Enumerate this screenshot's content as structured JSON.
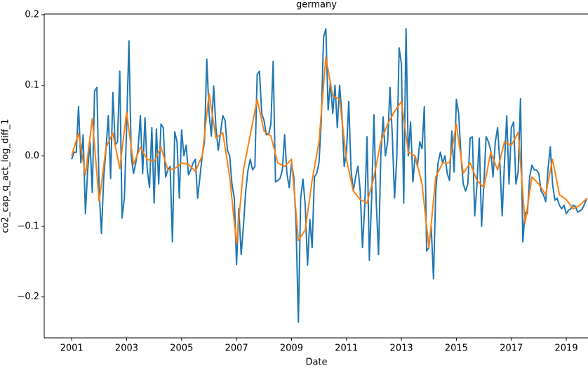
{
  "chart_data": {
    "type": "line",
    "title": "germany",
    "x_label": "Date",
    "y_label": "co2_cap_q_act_log_diff_1",
    "xlim": [
      2000,
      2019.79
    ],
    "xticks": [
      2001,
      2003,
      2005,
      2007,
      2009,
      2011,
      2013,
      2015,
      2017,
      2019
    ],
    "ylim": [
      -0.258,
      0.201
    ],
    "yticks": [
      {
        "value": -0.2,
        "label": "−0.2"
      },
      {
        "value": -0.1,
        "label": "−0.1"
      },
      {
        "value": 0,
        "label": "0.0"
      },
      0.1,
      0.2
    ],
    "grid": false,
    "series": [
      {
        "color": "#1f77b4",
        "x": [
          2001,
          2001.083,
          2001.167,
          2001.25,
          2001.333,
          2001.417,
          2001.5,
          2001.583,
          2001.667,
          2001.75,
          2001.833,
          2001.917,
          2002,
          2002.083,
          2002.167,
          2002.25,
          2002.333,
          2002.417,
          2002.5,
          2002.583,
          2002.667,
          2002.75,
          2002.833,
          2002.917,
          2003,
          2003.083,
          2003.167,
          2003.25,
          2003.333,
          2003.417,
          2003.5,
          2003.583,
          2003.667,
          2003.75,
          2003.833,
          2003.917,
          2004,
          2004.083,
          2004.167,
          2004.25,
          2004.333,
          2004.417,
          2004.5,
          2004.583,
          2004.667,
          2004.75,
          2004.833,
          2004.917,
          2005,
          2005.083,
          2005.167,
          2005.25,
          2005.333,
          2005.417,
          2005.5,
          2005.583,
          2005.667,
          2005.75,
          2005.833,
          2005.917,
          2006,
          2006.083,
          2006.167,
          2006.25,
          2006.333,
          2006.417,
          2006.5,
          2006.583,
          2006.667,
          2006.75,
          2006.833,
          2006.917,
          2007,
          2007.083,
          2007.167,
          2007.25,
          2007.333,
          2007.417,
          2007.5,
          2007.583,
          2007.667,
          2007.75,
          2007.833,
          2007.917,
          2008,
          2008.083,
          2008.167,
          2008.25,
          2008.333,
          2008.417,
          2008.5,
          2008.583,
          2008.667,
          2008.75,
          2008.833,
          2008.917,
          2009,
          2009.083,
          2009.167,
          2009.25,
          2009.333,
          2009.417,
          2009.5,
          2009.583,
          2009.667,
          2009.75,
          2009.833,
          2009.917,
          2010,
          2010.083,
          2010.167,
          2010.25,
          2010.333,
          2010.417,
          2010.5,
          2010.583,
          2010.667,
          2010.75,
          2010.833,
          2010.917,
          2011,
          2011.083,
          2011.167,
          2011.25,
          2011.333,
          2011.417,
          2011.5,
          2011.583,
          2011.667,
          2011.75,
          2011.833,
          2011.917,
          2012,
          2012.083,
          2012.167,
          2012.25,
          2012.333,
          2012.417,
          2012.5,
          2012.583,
          2012.667,
          2012.75,
          2012.833,
          2012.917,
          2013,
          2013.083,
          2013.167,
          2013.25,
          2013.333,
          2013.417,
          2013.5,
          2013.583,
          2013.667,
          2013.75,
          2013.833,
          2013.917,
          2014,
          2014.083,
          2014.167,
          2014.25,
          2014.333,
          2014.417,
          2014.5,
          2014.583,
          2014.667,
          2014.75,
          2014.833,
          2014.917,
          2015,
          2015.083,
          2015.167,
          2015.25,
          2015.333,
          2015.417,
          2015.5,
          2015.583,
          2015.667,
          2015.75,
          2015.833,
          2015.917,
          2016,
          2016.083,
          2016.167,
          2016.25,
          2016.333,
          2016.417,
          2016.5,
          2016.583,
          2016.667,
          2016.75,
          2016.833,
          2016.917,
          2017,
          2017.083,
          2017.167,
          2017.25,
          2017.333,
          2017.417,
          2017.5,
          2017.583,
          2017.667,
          2017.75,
          2017.833,
          2017.917,
          2018,
          2018.083,
          2018.167,
          2018.25,
          2018.333,
          2018.417,
          2018.5,
          2018.583,
          2018.667,
          2018.75,
          2018.833,
          2018.917,
          2019,
          2019.083,
          2019.167,
          2019.25,
          2019.333,
          2019.417,
          2019.5,
          2019.583,
          2019.667,
          2019.75
        ],
        "values": [
          -0.005,
          0.005,
          0.005,
          0.07,
          -0.01,
          0.03,
          -0.082,
          -0.02,
          0.02,
          -0.052,
          0.092,
          0.097,
          -0.05,
          -0.11,
          -0.03,
          0.01,
          0.057,
          -0.032,
          0.09,
          0.015,
          0.02,
          0.12,
          -0.088,
          -0.06,
          0.04,
          0.163,
          0.0,
          -0.025,
          -0.01,
          0.01,
          0.057,
          -0.025,
          0.054,
          -0.02,
          -0.045,
          0.04,
          -0.067,
          0.038,
          -0.04,
          0.045,
          0.04,
          -0.03,
          -0.02,
          -0.015,
          -0.122,
          0.034,
          0.02,
          -0.06,
          0.037,
          0.0,
          0.015,
          -0.027,
          -0.02,
          -0.01,
          -0.005,
          -0.06,
          -0.03,
          0.0,
          0.02,
          0.137,
          0.06,
          0.028,
          0.099,
          0.04,
          0.008,
          0.033,
          0.057,
          0.05,
          0.008,
          0.0,
          -0.04,
          -0.06,
          -0.154,
          -0.075,
          -0.14,
          -0.1,
          -0.05,
          -0.02,
          -0.005,
          -0.02,
          -0.015,
          0.115,
          0.12,
          0.06,
          0.05,
          0.03,
          0.03,
          0.045,
          0.134,
          -0.037,
          -0.035,
          -0.032,
          -0.02,
          0.03,
          -0.025,
          -0.045,
          -0.01,
          -0.03,
          -0.1,
          -0.236,
          -0.06,
          -0.033,
          -0.07,
          -0.155,
          -0.09,
          -0.13,
          -0.03,
          -0.025,
          -0.01,
          0.05,
          0.168,
          0.18,
          0.065,
          0.105,
          0.06,
          0.1,
          0.04,
          0.1,
          0.06,
          -0.015,
          0.005,
          0.077,
          -0.02,
          -0.05,
          -0.03,
          -0.015,
          -0.05,
          -0.13,
          -0.07,
          0.027,
          -0.148,
          -0.06,
          0.058,
          -0.065,
          -0.14,
          0.0,
          0.055,
          0.0,
          0.02,
          0.097,
          0.03,
          -0.06,
          0.0,
          0.153,
          0.13,
          -0.067,
          0.18,
          0.0,
          0.048,
          -0.037,
          0.0,
          -0.015,
          0.02,
          0.01,
          0.07,
          -0.135,
          -0.13,
          -0.1,
          -0.174,
          -0.05,
          -0.01,
          0.005,
          -0.01,
          0.0,
          -0.025,
          -0.035,
          0.035,
          -0.023,
          0.08,
          0.06,
          0.0,
          -0.04,
          -0.05,
          -0.04,
          0.025,
          0.027,
          -0.085,
          -0.04,
          0.025,
          -0.1,
          -0.04,
          0.027,
          0.02,
          0.008,
          -0.03,
          0.02,
          0.04,
          -0.01,
          -0.085,
          -0.01,
          0.057,
          -0.04,
          0.04,
          0.048,
          -0.04,
          -0.022,
          0.081,
          -0.122,
          -0.08,
          -0.082,
          -0.03,
          -0.013,
          -0.02,
          -0.02,
          -0.025,
          -0.05,
          -0.055,
          -0.065,
          -0.02,
          0.013,
          -0.04,
          -0.063,
          -0.06,
          -0.07,
          -0.075,
          -0.07,
          -0.082,
          -0.077,
          -0.075,
          -0.07,
          -0.072,
          -0.08,
          -0.078,
          -0.075,
          -0.068,
          -0.06
        ]
      },
      {
        "color": "#ff7f0e",
        "x": [
          2001,
          2001.25,
          2001.5,
          2001.75,
          2002,
          2002.25,
          2002.5,
          2002.75,
          2003,
          2003.25,
          2003.5,
          2003.75,
          2004,
          2004.25,
          2004.5,
          2004.75,
          2005,
          2005.25,
          2005.5,
          2005.75,
          2006,
          2006.25,
          2006.5,
          2006.75,
          2007,
          2007.25,
          2007.5,
          2007.75,
          2008,
          2008.25,
          2008.5,
          2008.75,
          2009,
          2009.25,
          2009.5,
          2009.75,
          2010,
          2010.25,
          2010.5,
          2010.75,
          2011,
          2011.25,
          2011.5,
          2011.75,
          2012,
          2012.25,
          2012.5,
          2012.75,
          2013,
          2013.25,
          2013.5,
          2013.75,
          2014,
          2014.25,
          2014.5,
          2014.75,
          2015,
          2015.25,
          2015.5,
          2015.75,
          2016,
          2016.25,
          2016.5,
          2016.75,
          2017,
          2017.25,
          2017.5,
          2017.75,
          2018,
          2018.25,
          2018.5,
          2018.75,
          2019,
          2019.25,
          2019.5,
          2019.75
        ],
        "values": [
          0.0,
          0.032,
          -0.027,
          0.053,
          -0.065,
          0.012,
          0.032,
          -0.018,
          0.062,
          -0.012,
          0.012,
          -0.005,
          -0.008,
          0.012,
          -0.02,
          -0.018,
          -0.01,
          -0.012,
          -0.022,
          0.0,
          0.088,
          0.025,
          0.033,
          -0.03,
          -0.125,
          -0.02,
          0.03,
          0.08,
          0.035,
          0.028,
          -0.01,
          -0.015,
          -0.005,
          -0.12,
          -0.105,
          -0.035,
          0.02,
          0.14,
          0.085,
          0.08,
          -0.005,
          -0.05,
          -0.062,
          -0.067,
          -0.03,
          0.02,
          0.045,
          0.063,
          0.077,
          0.005,
          0.0,
          -0.04,
          -0.13,
          -0.03,
          -0.01,
          -0.01,
          0.045,
          -0.025,
          -0.01,
          -0.035,
          -0.045,
          0.005,
          -0.02,
          0.02,
          0.015,
          0.033,
          -0.095,
          -0.03,
          -0.04,
          -0.055,
          -0.005,
          -0.055,
          -0.062,
          -0.075,
          -0.07,
          -0.06
        ]
      }
    ]
  }
}
